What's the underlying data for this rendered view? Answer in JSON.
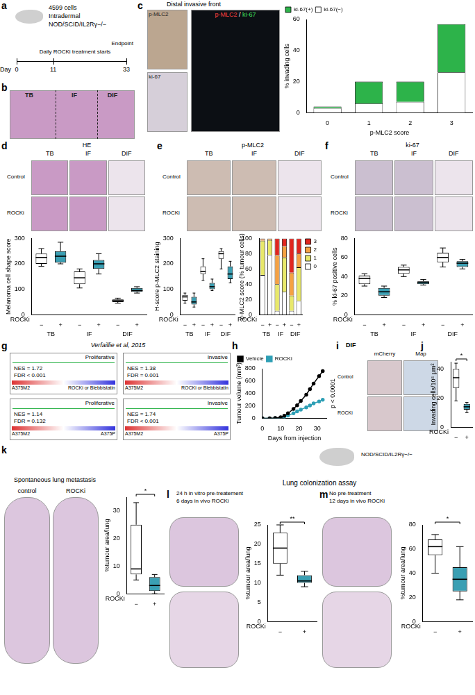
{
  "panels": [
    {
      "letter": "a",
      "cells": "4599 cells",
      "route": "Intradermal",
      "mouse": "NOD/SCID/IL2Rγ−/−",
      "start": "Daily ROCKi treatment starts",
      "end": "Endpoint",
      "day_label": "Day",
      "days": [
        0,
        11,
        33
      ]
    },
    {
      "letter": "b",
      "regions": [
        "TB",
        "IF",
        "DIF"
      ]
    },
    {
      "letter": "c",
      "stains": [
        "p-MLC2",
        "ki-67"
      ],
      "region": "Distal invasive front",
      "merge": "p-MLC2 / ki-67"
    },
    {
      "letter": "d",
      "stain": "HE",
      "rows": [
        "Control",
        "ROCKi"
      ],
      "columns": [
        "TB",
        "IF",
        "DIF"
      ]
    },
    {
      "letter": "e",
      "stain": "p-MLC2",
      "rows": [
        "Control",
        "ROCKi"
      ],
      "columns": [
        "TB",
        "IF",
        "DIF"
      ]
    },
    {
      "letter": "f",
      "stain": "ki-67",
      "rows": [
        "Control",
        "ROCKi"
      ],
      "columns": [
        "TB",
        "IF",
        "DIF"
      ]
    },
    {
      "letter": "g",
      "source": "Verfaillie et al, 2015",
      "plots": [
        {
          "signature": "Proliferative",
          "stats": [
            "NES = 1.72",
            "FDR < 0.001"
          ],
          "left": "A375M2",
          "right": "ROCKi or Blebbistatin"
        },
        {
          "signature": "Invasive",
          "stats": [
            "NES = 1.38",
            "FDR = 0.001"
          ],
          "left": "A375M2",
          "right": "ROCKi or Blebbistatin"
        },
        {
          "signature": "Proliferative",
          "stats": [
            "NES = 1.14",
            "FDR = 0.132"
          ],
          "left": "A375M2",
          "right": "A375P"
        },
        {
          "signature": "Invasive",
          "stats": [
            "NES = 1.74",
            "FDR < 0.001"
          ],
          "left": "A375M2",
          "right": "A375P"
        }
      ]
    },
    {
      "letter": "h"
    },
    {
      "letter": "i",
      "region": "DIF",
      "columns": [
        "mCherry",
        "Map"
      ],
      "rows": [
        "Control",
        "ROCKi"
      ]
    },
    {
      "letter": "j"
    },
    {
      "letter": "k",
      "title": "Spontaneous lung metastasis",
      "rows": [
        "control",
        "ROCKi"
      ]
    },
    {
      "letter": "l",
      "title": [
        "24 h in vitro pre-treatement",
        "6 days in vivo ROCKi"
      ]
    },
    {
      "letter": "m",
      "title": [
        "No pre-treatment",
        "12 days in vivo ROCKi"
      ]
    },
    {
      "header": "Lung colonization assay",
      "mouse": "NOD/SCID/IL2Rγ−/−"
    }
  ],
  "chart_data": [
    {
      "panel": "c",
      "type": "bar",
      "stacked": true,
      "categories": [
        "0",
        "1",
        "2",
        "3"
      ],
      "x_label": "p-MLC2 score",
      "y_label": "% invading cells",
      "ylim": [
        0,
        60
      ],
      "yticks": [
        0,
        20,
        40,
        60
      ],
      "grid": false,
      "legend": "top",
      "series": [
        {
          "name": "ki-67(−)",
          "color": "#ffffff",
          "values": [
            3,
            6,
            7,
            26
          ]
        },
        {
          "name": "ki-67(+)",
          "color": "#2db34a",
          "values": [
            1,
            14,
            13,
            31
          ]
        }
      ]
    },
    {
      "panel": "d",
      "type": "box",
      "categories": [
        "−",
        "+",
        "−",
        "+",
        "−",
        "+"
      ],
      "groups": [
        "TB",
        "IF",
        "DIF"
      ],
      "x_label": "ROCKi",
      "y_label": "Melanoma cell shape score",
      "ylim": [
        0,
        300
      ],
      "yticks": [
        0,
        100,
        200,
        300
      ],
      "grid": false,
      "colors": [
        "#ffffff",
        "#3a9fb3",
        "#ffffff",
        "#3a9fb3",
        "#ffffff",
        "#3a9fb3"
      ],
      "boxes": [
        {
          "min": 190,
          "q1": 200,
          "median": 225,
          "q3": 240,
          "max": 260
        },
        {
          "min": 200,
          "q1": 205,
          "median": 230,
          "q3": 250,
          "max": 285
        },
        {
          "min": 105,
          "q1": 120,
          "median": 145,
          "q3": 170,
          "max": 180
        },
        {
          "min": 160,
          "q1": 180,
          "median": 200,
          "q3": 215,
          "max": 240
        },
        {
          "min": 45,
          "q1": 50,
          "median": 55,
          "q3": 60,
          "max": 65
        },
        {
          "min": 85,
          "q1": 90,
          "median": 95,
          "q3": 105,
          "max": 110
        }
      ]
    },
    {
      "panel": "e",
      "type": "box",
      "categories": [
        "−",
        "+",
        "−",
        "+",
        "−",
        "+"
      ],
      "groups": [
        "TB",
        "IF",
        "DIF"
      ],
      "x_label": "ROCKi",
      "y_label": "H-score p-MLC2 staining",
      "ylim": [
        0,
        300
      ],
      "yticks": [
        0,
        100,
        200,
        300
      ],
      "grid": false,
      "colors": [
        "#ffffff",
        "#3a9fb3",
        "#ffffff",
        "#3a9fb3",
        "#ffffff",
        "#3a9fb3"
      ],
      "boxes": [
        {
          "min": 45,
          "q1": 55,
          "median": 70,
          "q3": 78,
          "max": 85
        },
        {
          "min": 30,
          "q1": 40,
          "median": 50,
          "q3": 70,
          "max": 85
        },
        {
          "min": 135,
          "q1": 160,
          "median": 170,
          "q3": 190,
          "max": 220
        },
        {
          "min": 95,
          "q1": 100,
          "median": 110,
          "q3": 125,
          "max": 140
        },
        {
          "min": 180,
          "q1": 220,
          "median": 240,
          "q3": 250,
          "max": 260
        },
        {
          "min": 125,
          "q1": 140,
          "median": 160,
          "q3": 190,
          "max": 210
        }
      ]
    },
    {
      "panel": "e",
      "type": "bar",
      "stacked": true,
      "categories": [
        "−",
        "+",
        "−",
        "+",
        "−",
        "+"
      ],
      "groups": [
        "TB",
        "IF",
        "DIF"
      ],
      "x_label": "ROCKi",
      "y_label": "p-MLC2 score (% tumour cells)",
      "ylim": [
        0,
        100
      ],
      "yticks": [
        0,
        20,
        40,
        60,
        80,
        100
      ],
      "grid": false,
      "legend": "right",
      "series": [
        {
          "name": "0",
          "color": "#ffffff",
          "values": [
            52,
            78,
            5,
            30,
            5,
            18
          ]
        },
        {
          "name": "1",
          "color": "#e8e86a",
          "values": [
            45,
            20,
            35,
            45,
            20,
            44
          ]
        },
        {
          "name": "2",
          "color": "#f5a142",
          "values": [
            2,
            2,
            38,
            15,
            30,
            18
          ]
        },
        {
          "name": "3",
          "color": "#e0261f",
          "values": [
            1,
            0,
            22,
            10,
            45,
            20
          ]
        }
      ]
    },
    {
      "panel": "f",
      "type": "box",
      "categories": [
        "−",
        "+",
        "−",
        "+",
        "−",
        "+"
      ],
      "groups": [
        "TB",
        "IF",
        "DIF"
      ],
      "x_label": "ROCKi",
      "y_label": "% ki-67 positive cells",
      "ylim": [
        0,
        80
      ],
      "yticks": [
        0,
        20,
        40,
        60,
        80
      ],
      "grid": false,
      "colors": [
        "#ffffff",
        "#3a9fb3",
        "#ffffff",
        "#3a9fb3",
        "#ffffff",
        "#3a9fb3"
      ],
      "boxes": [
        {
          "min": 30,
          "q1": 32,
          "median": 38,
          "q3": 41,
          "max": 43
        },
        {
          "min": 18,
          "q1": 20,
          "median": 24,
          "q3": 28,
          "max": 30
        },
        {
          "min": 40,
          "q1": 43,
          "median": 47,
          "q3": 50,
          "max": 52
        },
        {
          "min": 31,
          "q1": 32,
          "median": 34,
          "q3": 35,
          "max": 37
        },
        {
          "min": 50,
          "q1": 55,
          "median": 60,
          "q3": 65,
          "max": 70
        },
        {
          "min": 48,
          "q1": 50,
          "median": 54,
          "q3": 56,
          "max": 58
        }
      ]
    },
    {
      "panel": "h",
      "type": "line",
      "x": [
        0,
        4,
        7,
        10,
        12,
        14,
        17,
        19,
        21,
        24,
        26,
        28,
        31,
        33
      ],
      "x_label": "Days from injection",
      "y_label": "Tumour volume (mm³)",
      "xlim": [
        0,
        35
      ],
      "xticks": [
        0,
        10,
        20,
        30
      ],
      "ylim": [
        0,
        800
      ],
      "yticks": [
        0,
        200,
        400,
        600,
        800
      ],
      "grid": false,
      "legend": "top",
      "annotation": "p < 0.0001",
      "series": [
        {
          "name": "Vehicle",
          "color": "#000000",
          "marker": "circle",
          "values": [
            0,
            0,
            5,
            15,
            40,
            80,
            150,
            210,
            280,
            380,
            470,
            560,
            680,
            760
          ]
        },
        {
          "name": "ROCKi",
          "color": "#2e9fb5",
          "marker": "circle",
          "values": [
            0,
            0,
            3,
            10,
            25,
            45,
            80,
            110,
            140,
            175,
            205,
            240,
            270,
            300
          ]
        }
      ]
    },
    {
      "panel": "j",
      "type": "box",
      "categories": [
        "−",
        "+"
      ],
      "x_label": "ROCKi",
      "y_label": "Invading cells/10⁵ μm²",
      "ylim": [
        0,
        45
      ],
      "yticks": [
        0,
        20,
        40
      ],
      "grid": false,
      "significance": "*",
      "colors": [
        "#ffffff",
        "#3a9fb3"
      ],
      "boxes": [
        {
          "min": 18,
          "q1": 27,
          "median": 34,
          "q3": 40,
          "max": 44
        },
        {
          "min": 10,
          "q1": 12,
          "median": 14,
          "q3": 16,
          "max": 17
        }
      ]
    },
    {
      "panel": "k",
      "type": "box",
      "categories": [
        "−",
        "+"
      ],
      "x_label": "ROCKi",
      "y_label": "%tumour area/lung",
      "ylim": [
        0,
        35
      ],
      "yticks": [
        0,
        10,
        20,
        30
      ],
      "grid": false,
      "significance": "*",
      "colors": [
        "#ffffff",
        "#3a9fb3"
      ],
      "boxes": [
        {
          "min": 5,
          "q1": 7,
          "median": 9,
          "q3": 25,
          "max": 33
        },
        {
          "min": 0,
          "q1": 1,
          "median": 3,
          "q3": 6,
          "max": 7
        }
      ]
    },
    {
      "panel": "l",
      "type": "box",
      "categories": [
        "−",
        "+"
      ],
      "x_label": "ROCKi",
      "y_label": "%tumour area/lung",
      "ylim": [
        0,
        25
      ],
      "yticks": [
        0,
        5,
        10,
        15,
        20,
        25
      ],
      "grid": false,
      "significance": "**",
      "colors": [
        "#ffffff",
        "#3a9fb3"
      ],
      "boxes": [
        {
          "min": 12,
          "q1": 15,
          "median": 19,
          "q3": 23,
          "max": 25
        },
        {
          "min": 9,
          "q1": 10,
          "median": 10.5,
          "q3": 12,
          "max": 13
        }
      ]
    },
    {
      "panel": "m",
      "type": "box",
      "categories": [
        "−",
        "+"
      ],
      "x_label": "ROCKi",
      "y_label": "%tumour area/lung",
      "ylim": [
        0,
        80
      ],
      "yticks": [
        0,
        20,
        40,
        60,
        80
      ],
      "grid": false,
      "significance": "*",
      "colors": [
        "#ffffff",
        "#3a9fb3"
      ],
      "boxes": [
        {
          "min": 40,
          "q1": 55,
          "median": 62,
          "q3": 68,
          "max": 72
        },
        {
          "min": 18,
          "q1": 25,
          "median": 35,
          "q3": 45,
          "max": 62
        }
      ]
    }
  ]
}
